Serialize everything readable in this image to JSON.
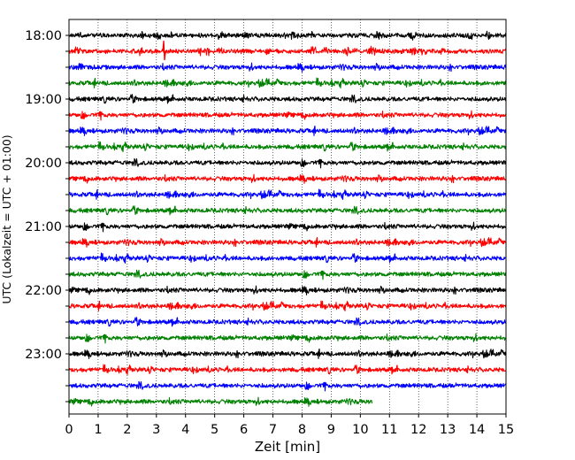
{
  "chart_data": {
    "type": "line",
    "title": "",
    "xlabel": "Zeit  [min]",
    "ylabel": "UTC (Lokalzeit = UTC + 01:00)",
    "xlim": [
      0,
      15
    ],
    "x_ticks": [
      "0",
      "1",
      "2",
      "3",
      "4",
      "5",
      "6",
      "7",
      "8",
      "9",
      "10",
      "11",
      "12",
      "13",
      "14",
      "15"
    ],
    "y_tick_labels": [
      "18:00",
      "19:00",
      "20:00",
      "21:00",
      "22:00",
      "23:00"
    ],
    "grid_x": "dotted",
    "grid_y": false,
    "legend": "none",
    "colors": [
      "#000000",
      "#ff0000",
      "#0000ff",
      "#008000"
    ],
    "traces": [
      {
        "start": "18:00",
        "end_min": 15
      },
      {
        "start": "18:15",
        "end_min": 15
      },
      {
        "start": "18:30",
        "end_min": 15
      },
      {
        "start": "18:45",
        "end_min": 15
      },
      {
        "start": "19:00",
        "end_min": 15
      },
      {
        "start": "19:15",
        "end_min": 15
      },
      {
        "start": "19:30",
        "end_min": 15
      },
      {
        "start": "19:45",
        "end_min": 15
      },
      {
        "start": "20:00",
        "end_min": 15
      },
      {
        "start": "20:15",
        "end_min": 15
      },
      {
        "start": "20:30",
        "end_min": 15
      },
      {
        "start": "20:45",
        "end_min": 15
      },
      {
        "start": "21:00",
        "end_min": 15
      },
      {
        "start": "21:15",
        "end_min": 15
      },
      {
        "start": "21:30",
        "end_min": 15
      },
      {
        "start": "21:45",
        "end_min": 15
      },
      {
        "start": "22:00",
        "end_min": 15
      },
      {
        "start": "22:15",
        "end_min": 15
      },
      {
        "start": "22:30",
        "end_min": 15
      },
      {
        "start": "22:45",
        "end_min": 15
      },
      {
        "start": "23:00",
        "end_min": 15
      },
      {
        "start": "23:15",
        "end_min": 15
      },
      {
        "start": "23:30",
        "end_min": 15
      },
      {
        "start": "23:45",
        "end_min": 10.4
      }
    ]
  }
}
